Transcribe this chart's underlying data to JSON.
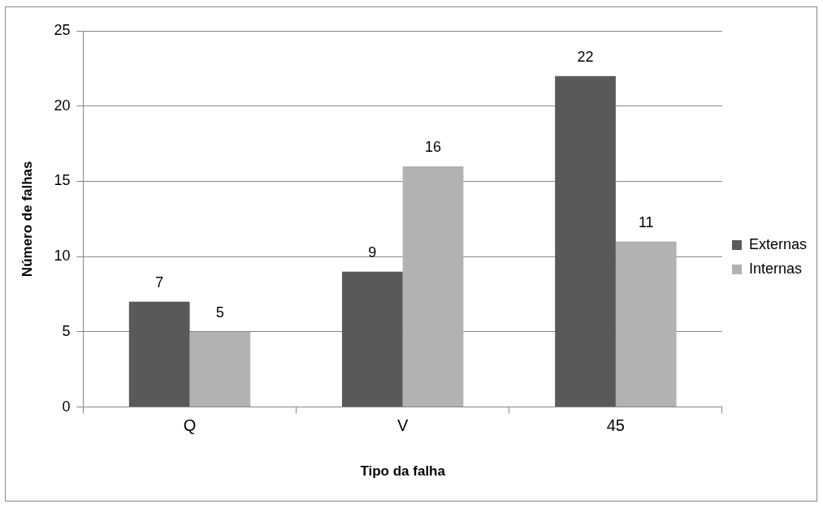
{
  "chart_data": {
    "type": "bar",
    "xlabel": "Tipo da falha",
    "ylabel": "Número de falhas",
    "categories": [
      "Q",
      "V",
      "45"
    ],
    "series": [
      {
        "name": "Externas",
        "color": "#595959",
        "values": [
          7,
          9,
          22
        ]
      },
      {
        "name": "Internas",
        "color": "#b2b2b2",
        "values": [
          5,
          16,
          11
        ]
      }
    ],
    "ylim": [
      0,
      25
    ],
    "yticks": [
      0,
      5,
      10,
      15,
      20,
      25
    ],
    "grid": "y",
    "legend": "right",
    "data_labels": true
  }
}
